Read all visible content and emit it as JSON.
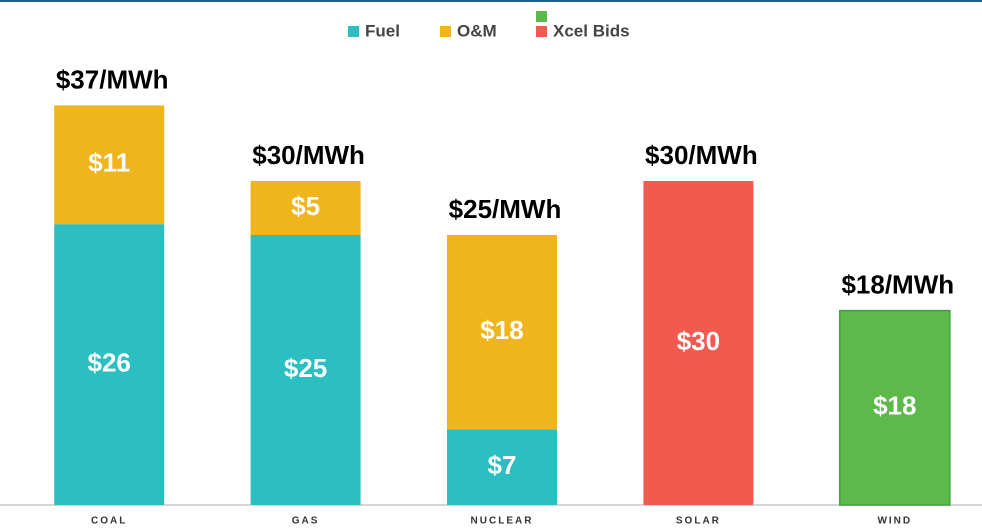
{
  "chart_data": {
    "type": "stacked_bar",
    "categories": [
      "COAL",
      "GAS",
      "NUCLEAR",
      "SOLAR",
      "WIND"
    ],
    "series": [
      {
        "name": "Fuel",
        "color": "#2bbfc1",
        "values": [
          26,
          25,
          7,
          null,
          null
        ],
        "value_labels": [
          "$26",
          "$25",
          "$7",
          null,
          null
        ]
      },
      {
        "name": "O&M",
        "color": "#f0b41c",
        "values": [
          11,
          5,
          18,
          null,
          null
        ],
        "value_labels": [
          "$11",
          "$5",
          "$18",
          null,
          null
        ]
      },
      {
        "name": "Xcel Bids",
        "colors": [
          null,
          null,
          null,
          "#f05a4f",
          "#5cb94a"
        ],
        "values": [
          null,
          null,
          null,
          30,
          18
        ],
        "value_labels": [
          null,
          null,
          null,
          "$30",
          "$18"
        ]
      }
    ],
    "totals": {
      "values": [
        37,
        30,
        25,
        30,
        18
      ],
      "value_labels": [
        "$37/MWh",
        "$30/MWh",
        "$25/MWh",
        "$30/MWh",
        "$18/MWh"
      ]
    },
    "ylim": [
      0,
      40
    ],
    "legend": "top"
  }
}
